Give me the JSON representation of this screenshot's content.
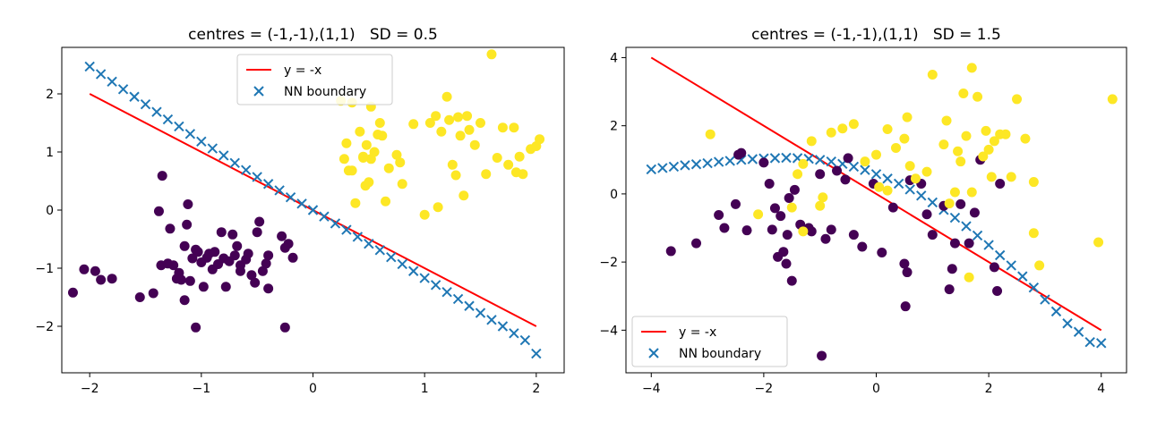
{
  "chart_data": [
    {
      "type": "scatter",
      "title": "centres = (-1,-1),(1,1)   SD = 0.5",
      "xlabel": "",
      "ylabel": "",
      "xlim": [
        -2.25,
        2.25
      ],
      "ylim": [
        -2.8,
        2.8
      ],
      "xticks": [
        "−2",
        "−1",
        "0",
        "1",
        "2"
      ],
      "xtick_values": [
        -2,
        -1,
        0,
        1,
        2
      ],
      "yticks": [
        "−2",
        "−1",
        "0",
        "1",
        "2"
      ],
      "ytick_values": [
        -2,
        -1,
        0,
        1,
        2
      ],
      "legend_position": "upper center",
      "grid": false,
      "legend": [
        {
          "label": "y = -x",
          "kind": "line",
          "color": "#ff0000"
        },
        {
          "label": "NN boundary",
          "kind": "x-marker",
          "color": "#1f77b4"
        }
      ],
      "series": [
        {
          "kind": "line",
          "color": "#ff0000",
          "x": [
            -2,
            2
          ],
          "y": [
            2,
            -2
          ]
        },
        {
          "kind": "x-marker",
          "color": "#1f77b4",
          "x": [
            -2.0,
            -1.9,
            -1.8,
            -1.7,
            -1.6,
            -1.5,
            -1.4,
            -1.3,
            -1.2,
            -1.1,
            -1.0,
            -0.9,
            -0.8,
            -0.7,
            -0.6,
            -0.5,
            -0.4,
            -0.3,
            -0.2,
            -0.1,
            0.0,
            0.1,
            0.2,
            0.3,
            0.4,
            0.5,
            0.6,
            0.7,
            0.8,
            0.9,
            1.0,
            1.1,
            1.2,
            1.3,
            1.4,
            1.5,
            1.6,
            1.7,
            1.8,
            1.9,
            2.0
          ],
          "y": [
            2.47,
            2.34,
            2.21,
            2.08,
            1.95,
            1.82,
            1.69,
            1.56,
            1.44,
            1.31,
            1.18,
            1.06,
            0.94,
            0.81,
            0.69,
            0.57,
            0.45,
            0.34,
            0.22,
            0.11,
            0.0,
            -0.11,
            -0.23,
            -0.34,
            -0.46,
            -0.58,
            -0.69,
            -0.81,
            -0.93,
            -1.05,
            -1.17,
            -1.29,
            -1.41,
            -1.53,
            -1.65,
            -1.77,
            -1.89,
            -2.0,
            -2.12,
            -2.24,
            -2.47
          ]
        },
        {
          "kind": "dot",
          "name": "class 0",
          "color": "#440154",
          "x": [
            -2.15,
            -2.05,
            -1.95,
            -1.9,
            -1.8,
            -1.55,
            -1.43,
            -1.35,
            -1.38,
            -1.36,
            -1.28,
            -1.25,
            -1.22,
            -1.2,
            -1.18,
            -1.15,
            -1.13,
            -1.12,
            -1.08,
            -1.05,
            -1.03,
            -1.0,
            -0.98,
            -0.95,
            -0.93,
            -0.9,
            -0.88,
            -0.85,
            -0.82,
            -0.8,
            -0.78,
            -0.75,
            -0.72,
            -0.7,
            -0.68,
            -0.65,
            -0.6,
            -0.58,
            -0.55,
            -0.52,
            -0.5,
            -0.45,
            -0.42,
            -0.4,
            -0.28,
            -0.25,
            -0.22,
            -0.18,
            -1.1,
            -1.05,
            -0.65,
            -0.48,
            -0.25,
            -0.4,
            -1.3,
            -1.15
          ],
          "y": [
            -1.42,
            -1.02,
            -1.05,
            -1.2,
            -1.18,
            -1.5,
            -1.43,
            0.59,
            -0.02,
            -0.95,
            -0.32,
            -0.95,
            -1.18,
            -1.08,
            -1.2,
            -1.55,
            -0.25,
            0.1,
            -0.83,
            -2.02,
            -0.72,
            -0.9,
            -1.32,
            -0.82,
            -0.75,
            -1.02,
            -0.72,
            -0.93,
            -0.38,
            -0.83,
            -1.32,
            -0.88,
            -0.42,
            -0.78,
            -0.62,
            -0.95,
            -0.85,
            -0.75,
            -1.12,
            -1.25,
            -0.38,
            -1.05,
            -0.92,
            -0.78,
            -0.45,
            -2.02,
            -0.58,
            -0.82,
            -1.22,
            -0.68,
            -1.05,
            -0.2,
            -0.65,
            -1.35,
            -0.92,
            -0.62
          ]
        },
        {
          "kind": "dot",
          "name": "class 1",
          "color": "#fde725",
          "x": [
            0.25,
            0.28,
            0.3,
            0.32,
            0.35,
            0.38,
            0.42,
            0.45,
            0.47,
            0.5,
            0.52,
            0.55,
            0.58,
            0.6,
            0.62,
            0.65,
            0.75,
            0.78,
            0.8,
            0.9,
            1.0,
            1.05,
            1.1,
            1.12,
            1.15,
            1.2,
            1.22,
            1.25,
            1.3,
            1.32,
            1.35,
            1.4,
            1.45,
            1.5,
            1.55,
            1.6,
            1.65,
            1.7,
            1.75,
            1.8,
            1.82,
            1.85,
            1.88,
            1.95,
            2.0,
            2.03,
            0.35,
            0.45,
            0.52,
            0.68,
            1.28,
            1.38,
            0.48
          ],
          "y": [
            1.88,
            0.88,
            1.15,
            0.68,
            1.85,
            0.12,
            1.35,
            0.9,
            0.42,
            0.48,
            0.88,
            1.0,
            1.3,
            1.5,
            1.28,
            0.15,
            0.95,
            0.82,
            0.45,
            1.48,
            -0.08,
            1.5,
            1.62,
            0.05,
            1.35,
            1.95,
            1.55,
            0.78,
            1.6,
            1.28,
            0.25,
            1.38,
            1.12,
            1.5,
            0.62,
            2.68,
            0.9,
            1.42,
            0.78,
            1.42,
            0.65,
            0.92,
            0.62,
            1.05,
            1.1,
            1.22,
            0.68,
            0.92,
            1.78,
            0.72,
            0.6,
            1.62,
            1.12
          ]
        }
      ]
    },
    {
      "type": "scatter",
      "title": "centres = (-1,-1),(1,1)   SD = 1.5",
      "xlabel": "",
      "ylabel": "",
      "xlim": [
        -4.45,
        4.45
      ],
      "ylim": [
        -5.25,
        4.3
      ],
      "xticks": [
        "−4",
        "−2",
        "0",
        "2",
        "4"
      ],
      "xtick_values": [
        -4,
        -2,
        0,
        2,
        4
      ],
      "yticks": [
        "−4",
        "−2",
        "0",
        "2",
        "4"
      ],
      "ytick_values": [
        -4,
        -2,
        0,
        2,
        4
      ],
      "legend_position": "lower left",
      "grid": false,
      "legend": [
        {
          "label": "y = -x",
          "kind": "line",
          "color": "#ff0000"
        },
        {
          "label": "NN boundary",
          "kind": "x-marker",
          "color": "#1f77b4"
        }
      ],
      "series": [
        {
          "kind": "line",
          "color": "#ff0000",
          "x": [
            -4,
            4
          ],
          "y": [
            4,
            -4
          ]
        },
        {
          "kind": "x-marker",
          "color": "#1f77b4",
          "x": [
            -4.0,
            -3.8,
            -3.6,
            -3.4,
            -3.2,
            -3.0,
            -2.8,
            -2.6,
            -2.4,
            -2.2,
            -2.0,
            -1.8,
            -1.6,
            -1.4,
            -1.2,
            -1.0,
            -0.8,
            -0.6,
            -0.4,
            -0.2,
            0.0,
            0.2,
            0.4,
            0.6,
            0.8,
            1.0,
            1.2,
            1.4,
            1.6,
            1.8,
            2.0,
            2.2,
            2.4,
            2.6,
            2.8,
            3.0,
            3.2,
            3.4,
            3.6,
            3.8,
            4.0
          ],
          "y": [
            0.72,
            0.76,
            0.8,
            0.84,
            0.87,
            0.9,
            0.94,
            0.97,
            1.0,
            1.02,
            1.04,
            1.05,
            1.06,
            1.05,
            1.03,
            1.0,
            0.95,
            0.88,
            0.8,
            0.7,
            0.58,
            0.45,
            0.3,
            0.13,
            -0.05,
            -0.25,
            -0.47,
            -0.7,
            -0.95,
            -1.22,
            -1.5,
            -1.8,
            -2.1,
            -2.42,
            -2.75,
            -3.1,
            -3.45,
            -3.8,
            -4.05,
            -4.35,
            -4.38
          ]
        },
        {
          "kind": "dot",
          "name": "class 0",
          "color": "#440154",
          "x": [
            -3.65,
            -3.2,
            -2.8,
            -2.7,
            -2.5,
            -2.4,
            -2.3,
            -2.0,
            -1.9,
            -1.85,
            -1.8,
            -1.7,
            -1.65,
            -1.6,
            -1.58,
            -1.55,
            -1.5,
            -1.45,
            -1.35,
            -1.2,
            -1.15,
            -1.0,
            -0.9,
            -0.8,
            -0.7,
            -0.5,
            -0.4,
            -0.25,
            -0.05,
            0.1,
            0.3,
            0.5,
            0.52,
            0.55,
            0.8,
            0.9,
            1.0,
            1.2,
            1.3,
            1.35,
            1.4,
            1.5,
            1.75,
            1.85,
            2.1,
            2.15,
            2.2,
            -2.45,
            -1.75,
            -0.55,
            0.6,
            1.65,
            -0.97
          ],
          "y": [
            -1.68,
            -1.45,
            -0.62,
            -1.0,
            -0.3,
            1.2,
            -1.07,
            0.92,
            0.3,
            -1.05,
            -0.42,
            -0.65,
            -1.7,
            -2.05,
            -1.2,
            -0.12,
            -2.55,
            0.12,
            -0.9,
            -1.0,
            -1.1,
            0.58,
            -1.32,
            -1.05,
            0.68,
            1.05,
            -1.2,
            -1.55,
            0.3,
            -1.72,
            -0.4,
            -2.05,
            -3.3,
            -2.3,
            0.3,
            -0.6,
            -1.2,
            -0.35,
            -2.8,
            -2.2,
            -1.45,
            -0.3,
            -0.55,
            1.0,
            -2.15,
            -2.85,
            0.3,
            1.15,
            -1.85,
            0.42,
            0.4,
            -1.45,
            -4.75
          ]
        },
        {
          "kind": "dot",
          "name": "class 1",
          "color": "#fde725",
          "x": [
            -2.95,
            -2.1,
            -1.5,
            -1.4,
            -1.3,
            -1.15,
            -1.0,
            -0.8,
            -0.6,
            -0.4,
            -0.2,
            0.0,
            0.05,
            0.2,
            0.35,
            0.5,
            0.55,
            0.6,
            0.7,
            0.9,
            1.0,
            1.2,
            1.25,
            1.3,
            1.4,
            1.45,
            1.5,
            1.55,
            1.6,
            1.65,
            1.7,
            1.8,
            1.9,
            1.95,
            2.0,
            2.05,
            2.1,
            2.2,
            2.3,
            2.4,
            2.5,
            2.65,
            2.8,
            2.9,
            3.95,
            4.2,
            -1.3,
            0.2,
            1.7,
            2.8,
            -0.95
          ],
          "y": [
            1.75,
            -0.6,
            -0.4,
            0.58,
            0.88,
            1.55,
            -0.35,
            1.8,
            1.92,
            2.05,
            0.95,
            1.15,
            0.2,
            1.9,
            1.35,
            1.62,
            2.25,
            0.82,
            0.45,
            0.65,
            3.5,
            1.45,
            2.15,
            -0.28,
            0.05,
            1.25,
            0.95,
            2.95,
            1.7,
            -2.45,
            3.7,
            2.85,
            1.1,
            1.85,
            1.3,
            0.5,
            1.55,
            1.75,
            1.75,
            0.5,
            2.78,
            1.62,
            0.35,
            -2.1,
            -1.42,
            2.78,
            -1.1,
            0.1,
            0.05,
            -1.15,
            -0.1
          ]
        }
      ]
    }
  ]
}
